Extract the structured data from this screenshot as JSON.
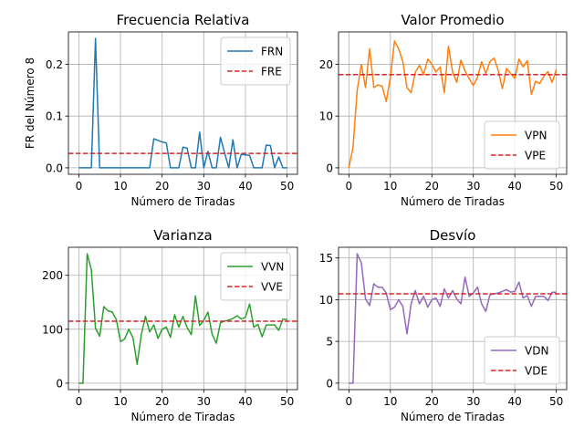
{
  "chart_data": [
    {
      "type": "line",
      "title": "Frecuencia Relativa",
      "xlabel": "Número de Tiradas",
      "ylabel": "FR del Número 8",
      "xlim": [
        -2.5,
        52.5
      ],
      "ylim": [
        -0.0125,
        0.2625
      ],
      "xticks": [
        0,
        10,
        20,
        30,
        40,
        50
      ],
      "yticks": [
        0.0,
        0.1,
        0.2
      ],
      "ytick_labels": [
        "0.0",
        "0.1",
        "0.2"
      ],
      "grid": true,
      "legend_position": "top-right",
      "series": [
        {
          "name": "FRN",
          "color": "#1f77b4",
          "style": "solid",
          "x": [
            0,
            1,
            2,
            3,
            4,
            5,
            6,
            7,
            8,
            9,
            10,
            11,
            12,
            13,
            14,
            15,
            16,
            17,
            18,
            19,
            20,
            21,
            22,
            23,
            24,
            25,
            26,
            27,
            28,
            29,
            30,
            31,
            32,
            33,
            34,
            35,
            36,
            37,
            38,
            39,
            40,
            41,
            42,
            43,
            44,
            45,
            46,
            47,
            48,
            49,
            50
          ],
          "y": [
            0,
            0,
            0,
            0,
            0.25,
            0,
            0,
            0,
            0,
            0,
            0,
            0,
            0,
            0,
            0,
            0,
            0,
            0,
            0.056,
            0.053,
            0.05,
            0.048,
            0,
            0,
            0,
            0.04,
            0.038,
            0,
            0,
            0.069,
            0,
            0.032,
            0,
            0,
            0.059,
            0.029,
            0,
            0.054,
            0,
            0.026,
            0.025,
            0.024,
            0,
            0,
            0,
            0.044,
            0.043,
            0,
            0.021,
            0,
            0
          ]
        },
        {
          "name": "FRE",
          "color": "#d62728",
          "style": "dashed",
          "x": [
            -2.5,
            52.5
          ],
          "y": [
            0.0278,
            0.0278
          ]
        }
      ]
    },
    {
      "type": "line",
      "title": "Valor Promedio",
      "xlabel": "Número de Tiradas",
      "ylabel": "",
      "xlim": [
        -2.5,
        52.5
      ],
      "ylim": [
        -1.25,
        26.25
      ],
      "xticks": [
        0,
        10,
        20,
        30,
        40,
        50
      ],
      "yticks": [
        0,
        10,
        20
      ],
      "ytick_labels": [
        "0",
        "10",
        "20"
      ],
      "grid": true,
      "legend_position": "bottom-right",
      "series": [
        {
          "name": "VPN",
          "color": "#ff7f0e",
          "style": "solid",
          "x": [
            0,
            1,
            2,
            3,
            4,
            5,
            6,
            7,
            8,
            9,
            10,
            11,
            12,
            13,
            14,
            15,
            16,
            17,
            18,
            19,
            20,
            21,
            22,
            23,
            24,
            25,
            26,
            27,
            28,
            29,
            30,
            31,
            32,
            33,
            34,
            35,
            36,
            37,
            38,
            39,
            40,
            41,
            42,
            43,
            44,
            45,
            46,
            47,
            48,
            49,
            50
          ],
          "y": [
            0,
            4,
            15,
            20,
            15.5,
            23,
            15.5,
            16,
            15.8,
            12.8,
            17.5,
            24.5,
            23,
            20.5,
            15.5,
            14.5,
            18.5,
            19.8,
            18,
            21,
            20,
            18.5,
            19.5,
            14.5,
            23.5,
            18.5,
            16.5,
            20.8,
            18.7,
            17.2,
            15.9,
            17.5,
            20.5,
            18.2,
            20.5,
            21.2,
            18.8,
            15.3,
            19.2,
            18.2,
            17.3,
            21,
            19.5,
            20.7,
            14.2,
            16.7,
            16.3,
            17.7,
            18.6,
            16.5,
            19
          ]
        },
        {
          "name": "VPE",
          "color": "#d62728",
          "style": "dashed",
          "x": [
            -2.5,
            52.5
          ],
          "y": [
            18,
            18
          ]
        }
      ]
    },
    {
      "type": "line",
      "title": "Varianza",
      "xlabel": "Número de Tiradas",
      "ylabel": "",
      "xlim": [
        -2.5,
        52.5
      ],
      "ylim": [
        -12,
        252
      ],
      "xticks": [
        0,
        10,
        20,
        30,
        40,
        50
      ],
      "yticks": [
        0,
        100,
        200
      ],
      "ytick_labels": [
        "0",
        "100",
        "200"
      ],
      "grid": true,
      "legend_position": "top-right",
      "series": [
        {
          "name": "VVN",
          "color": "#2ca02c",
          "style": "solid",
          "x": [
            0,
            1,
            2,
            3,
            4,
            5,
            6,
            7,
            8,
            9,
            10,
            11,
            12,
            13,
            14,
            15,
            16,
            17,
            18,
            19,
            20,
            21,
            22,
            23,
            24,
            25,
            26,
            27,
            28,
            29,
            30,
            31,
            32,
            33,
            34,
            35,
            36,
            37,
            38,
            39,
            40,
            41,
            42,
            43,
            44,
            45,
            46,
            47,
            48,
            49,
            50
          ],
          "y": [
            0,
            0,
            240,
            210,
            102,
            87,
            142,
            134,
            132,
            118,
            77,
            82,
            100,
            84,
            35,
            90,
            124,
            95,
            108,
            83,
            100,
            104,
            85,
            127,
            104,
            124,
            103,
            90,
            162,
            107,
            116,
            132,
            91,
            74,
            112,
            115,
            117,
            120,
            125,
            119,
            122,
            147,
            104,
            109,
            86,
            108,
            108,
            108,
            98,
            119,
            118
          ]
        },
        {
          "name": "VVE",
          "color": "#d62728",
          "style": "dashed",
          "x": [
            -2.5,
            52.5
          ],
          "y": [
            115,
            115
          ]
        }
      ]
    },
    {
      "type": "line",
      "title": "Desvío",
      "xlabel": "Número de Tiradas",
      "ylabel": "",
      "xlim": [
        -2.5,
        52.5
      ],
      "ylim": [
        -0.78,
        16.28
      ],
      "xticks": [
        0,
        10,
        20,
        30,
        40,
        50
      ],
      "yticks": [
        0,
        5,
        10,
        15
      ],
      "ytick_labels": [
        "0",
        "5",
        "10",
        "15"
      ],
      "grid": true,
      "legend_position": "bottom-right",
      "series": [
        {
          "name": "VDN",
          "color": "#9467bd",
          "style": "solid",
          "x": [
            0,
            1,
            2,
            3,
            4,
            5,
            6,
            7,
            8,
            9,
            10,
            11,
            12,
            13,
            14,
            15,
            16,
            17,
            18,
            19,
            20,
            21,
            22,
            23,
            24,
            25,
            26,
            27,
            28,
            29,
            30,
            31,
            32,
            33,
            34,
            35,
            36,
            37,
            38,
            39,
            40,
            41,
            42,
            43,
            44,
            45,
            46,
            47,
            48,
            49,
            50
          ],
          "y": [
            0,
            0,
            15.5,
            14.4,
            10.1,
            9.3,
            11.9,
            11.5,
            11.5,
            10.8,
            8.8,
            9.1,
            10,
            9.2,
            5.9,
            9.5,
            11.1,
            9.5,
            10.4,
            9.1,
            10,
            10.2,
            9.2,
            11.3,
            10.2,
            11.1,
            10.1,
            9.5,
            12.7,
            10.4,
            10.8,
            11.5,
            9.5,
            8.6,
            10.6,
            10.7,
            10.8,
            11,
            11.2,
            10.9,
            11,
            12.1,
            10.2,
            10.5,
            9.2,
            10.4,
            10.4,
            10.4,
            9.9,
            10.9,
            10.9
          ]
        },
        {
          "name": "VDE",
          "color": "#d62728",
          "style": "dashed",
          "x": [
            -2.5,
            52.5
          ],
          "y": [
            10.7,
            10.7
          ]
        }
      ]
    }
  ]
}
